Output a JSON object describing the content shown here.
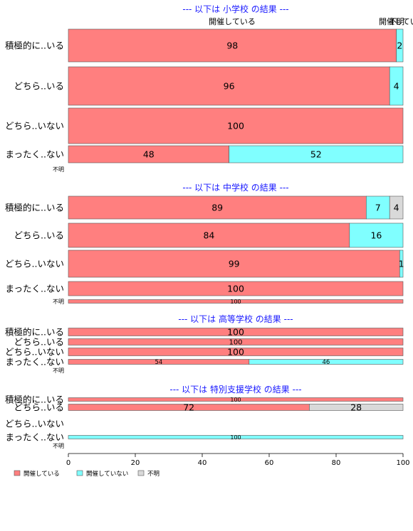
{
  "chart_data": {
    "type": "bar",
    "orientation": "horizontal",
    "stacked": true,
    "xlim": [
      0,
      100
    ],
    "xticks": [
      0,
      20,
      40,
      60,
      80,
      100
    ],
    "legend_position": "bottom-left",
    "legend": [
      {
        "key": "held",
        "label": "開催している",
        "color": "#ff7f7f"
      },
      {
        "key": "not_held",
        "label": "開催していない",
        "color": "#80ffff"
      },
      {
        "key": "unknown",
        "label": "不明",
        "color": "#d9d9d9"
      }
    ],
    "column_labels": [
      "開催している",
      "開催していない",
      "不明"
    ],
    "panels": [
      {
        "title": "--- 以下は 小学校 の結果 ---",
        "rows": [
          {
            "label": "積極的に..いる",
            "held": 98,
            "not_held": 2,
            "unknown": 0
          },
          {
            "label": "どちら..いる",
            "held": 96,
            "not_held": 4,
            "unknown": 0
          },
          {
            "label": "どちら..いない",
            "held": 100,
            "not_held": 0,
            "unknown": 0
          },
          {
            "label": "まったく..ない",
            "held": 48,
            "not_held": 52,
            "unknown": 0
          },
          {
            "label": "不明"
          }
        ]
      },
      {
        "title": "--- 以下は 中学校 の結果 ---",
        "rows": [
          {
            "label": "積極的に..いる",
            "held": 89,
            "not_held": 7,
            "unknown": 4
          },
          {
            "label": "どちら..いる",
            "held": 84,
            "not_held": 16,
            "unknown": 0
          },
          {
            "label": "どちら..いない",
            "held": 99,
            "not_held": 1,
            "unknown": 0
          },
          {
            "label": "まったく..ない",
            "held": 100,
            "not_held": 0,
            "unknown": 0
          },
          {
            "label": "不明",
            "held": 100,
            "not_held": 0,
            "unknown": 0
          }
        ]
      },
      {
        "title": "--- 以下は 高等学校 の結果 ---",
        "rows": [
          {
            "label": "積極的に..いる",
            "held": 100,
            "not_held": 0,
            "unknown": 0
          },
          {
            "label": "どちら..いる",
            "held": 100,
            "not_held": 0,
            "unknown": 0
          },
          {
            "label": "どちら..いない",
            "held": 100,
            "not_held": 0,
            "unknown": 0
          },
          {
            "label": "まったく..ない",
            "held": 54,
            "not_held": 46,
            "unknown": 0
          },
          {
            "label": "不明"
          }
        ]
      },
      {
        "title": "--- 以下は 特別支援学校 の結果 ---",
        "rows": [
          {
            "label": "積極的に..いる",
            "held": 100,
            "not_held": 0,
            "unknown": 0
          },
          {
            "label": "どちら..いる",
            "held": 72,
            "not_held": 0,
            "unknown": 28
          },
          {
            "label": "どちら..いない"
          },
          {
            "label": "まったく..ない",
            "held": 0,
            "not_held": 100,
            "unknown": 0
          },
          {
            "label": "不明"
          }
        ]
      }
    ]
  }
}
